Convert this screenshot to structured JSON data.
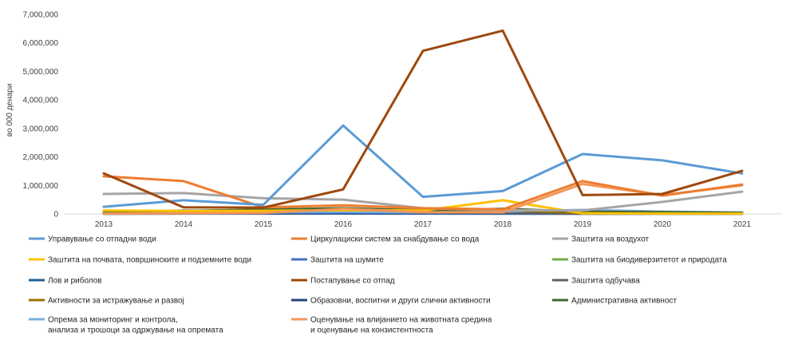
{
  "chart_data": {
    "type": "line",
    "title": "",
    "xlabel": "",
    "ylabel": "во 000 денари",
    "categories": [
      "2013",
      "2014",
      "2015",
      "2016",
      "2017",
      "2018",
      "2019",
      "2020",
      "2021"
    ],
    "ylim": [
      0,
      7000000
    ],
    "yticks": [
      0,
      1000000,
      2000000,
      3000000,
      4000000,
      5000000,
      6000000,
      7000000
    ],
    "ytick_labels": [
      "0",
      "1,000,000",
      "2,000,000",
      "3,000,000",
      "4,000,000",
      "5,000,000",
      "6,000,000",
      "7,000,000"
    ],
    "grid": false,
    "legend_position": "bottom",
    "series": [
      {
        "name": "Управување со отпадни води",
        "label_lines": [
          "Управување со отпадни води"
        ],
        "color": "#5B9BD5",
        "values": [
          250000,
          480000,
          320000,
          3100000,
          600000,
          800000,
          2100000,
          1880000,
          1420000
        ]
      },
      {
        "name": "Циркулациски систем за снабдување со вода",
        "label_lines": [
          "Циркулациски систем за снабдување со вода"
        ],
        "color": "#ED7D31",
        "values": [
          1320000,
          1150000,
          230000,
          300000,
          200000,
          160000,
          1150000,
          640000,
          1030000
        ]
      },
      {
        "name": "Заштита на воздухот",
        "label_lines": [
          "Заштита на воздухот"
        ],
        "color": "#A5A5A5",
        "values": [
          700000,
          730000,
          550000,
          500000,
          200000,
          130000,
          120000,
          420000,
          780000
        ]
      },
      {
        "name": "Заштита на почвата, површинските и подземните води",
        "label_lines": [
          "Заштита на почвата, површинските и подземните води"
        ],
        "color": "#FFC000",
        "values": [
          120000,
          100000,
          110000,
          130000,
          120000,
          480000,
          20000,
          10000,
          10000
        ]
      },
      {
        "name": "Заштита на шумите",
        "label_lines": [
          "Заштита на шумите"
        ],
        "color": "#4472C4",
        "values": [
          20000,
          30000,
          40000,
          50000,
          30000,
          30000,
          20000,
          20000,
          20000
        ]
      },
      {
        "name": "Заштита на биодиверзитетот и природата",
        "label_lines": [
          "Заштита на биодиверзитетот и природата"
        ],
        "color": "#70AD47",
        "values": [
          60000,
          110000,
          130000,
          160000,
          140000,
          170000,
          40000,
          60000,
          30000
        ]
      },
      {
        "name": "Лов и риболов",
        "label_lines": [
          "Лов и риболов"
        ],
        "color": "#255E91",
        "values": [
          10000,
          15000,
          20000,
          20000,
          15000,
          10000,
          10000,
          10000,
          10000
        ]
      },
      {
        "name": "Постапување со отпад",
        "label_lines": [
          "Постапување со отпад"
        ],
        "color": "#9E480E",
        "values": [
          1420000,
          230000,
          220000,
          860000,
          5720000,
          6430000,
          660000,
          700000,
          1510000
        ]
      },
      {
        "name": "Заштита одбучава",
        "label_lines": [
          "Заштита одбучава"
        ],
        "color": "#636363",
        "values": [
          10000,
          120000,
          70000,
          90000,
          50000,
          40000,
          20000,
          30000,
          20000
        ]
      },
      {
        "name": "Активности за истражување и развој",
        "label_lines": [
          "Активности за истражување и развој"
        ],
        "color": "#997300",
        "values": [
          20000,
          60000,
          90000,
          170000,
          60000,
          150000,
          20000,
          20000,
          15000
        ]
      },
      {
        "name": "Образовни, воспитни и други слични активности",
        "label_lines": [
          "Образовни, воспитни и други слични активности"
        ],
        "color": "#264478",
        "values": [
          5000,
          10000,
          10000,
          15000,
          10000,
          10000,
          5000,
          5000,
          5000
        ]
      },
      {
        "name": "Административна активност",
        "label_lines": [
          "Административна активност"
        ],
        "color": "#43682B",
        "values": [
          40000,
          100000,
          150000,
          200000,
          120000,
          180000,
          80000,
          60000,
          40000
        ]
      },
      {
        "name": "Опрема за мониторинг и контрола, анализа и трошоци за одржување на опремата",
        "label_lines": [
          "Опрема за мониторинг и контрола,",
          "анализа и трошоци за одржување на опремата"
        ],
        "color": "#7CAFDD",
        "values": [
          30000,
          50000,
          70000,
          80000,
          60000,
          90000,
          140000,
          80000,
          50000
        ]
      },
      {
        "name": "Оценување на влијанието на животната средина и оценување на конзистентноста",
        "label_lines": [
          "Оценување на влијанието на животната средина",
          "и оценување на конзистентноста"
        ],
        "color": "#F1975A",
        "values": [
          10000,
          20000,
          30000,
          180000,
          60000,
          60000,
          1050000,
          660000,
          1000000
        ]
      }
    ]
  }
}
